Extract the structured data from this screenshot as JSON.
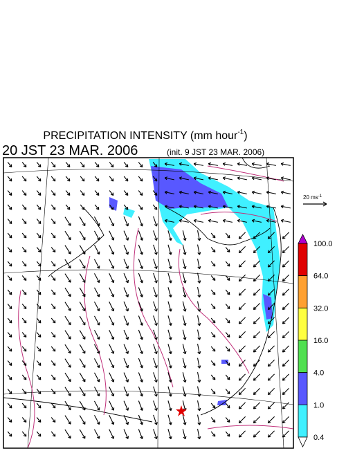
{
  "header": {
    "title": "PRECIPITATION INTENSITY (mm hour",
    "title_exponent": "-1",
    "title_close": ")",
    "time": "20 JST 23 MAR. 2006",
    "init": "(init. 9 JST 23 MAR. 2006)"
  },
  "wind_scale": {
    "label": "20 ms",
    "exponent": "-1"
  },
  "colorbar": {
    "levels": [
      "100.0",
      "64.0",
      "32.0",
      "16.0",
      "4.0",
      "1.0",
      "0.4"
    ],
    "over_color": "#b000d0",
    "colors": [
      "#e00000",
      "#ffa030",
      "#ffff40",
      "#50e050",
      "#5858ff",
      "#40f0ff"
    ],
    "under_color": "#ffffff"
  }
}
